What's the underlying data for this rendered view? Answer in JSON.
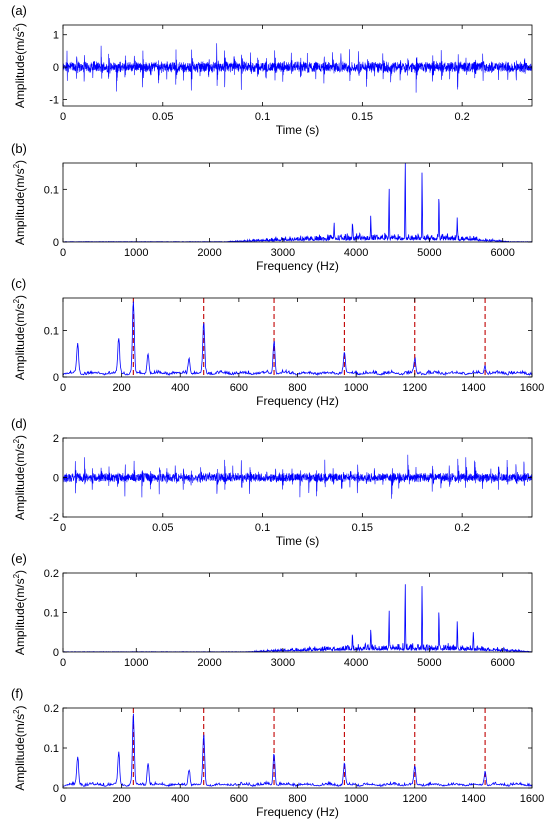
{
  "colors": {
    "signal": "#0000ff",
    "harmonic": "#c00000",
    "axis": "#000000"
  },
  "chart_data": [
    {
      "panel_label": "(a)",
      "type": "line",
      "kind": "time",
      "xlabel": "Time (s)",
      "ylabel": "Amplitude(m/s²)",
      "ylabel_main": "Amplitude(m/s",
      "ylabel_sup": "2",
      "ylabel_tail": ")",
      "xlim": [
        0,
        0.235
      ],
      "ylim": [
        -1.2,
        1.3
      ],
      "xticks": [
        0,
        0.05,
        0.1,
        0.15,
        0.2
      ],
      "xtick_labels": [
        "0",
        "0.05",
        "0.1",
        "0.15",
        "0.2"
      ],
      "yticks": [
        -1,
        0,
        1
      ],
      "ytick_labels": [
        "-1",
        "0",
        "1"
      ],
      "noise_amplitude": 0.18,
      "impulse_period": 0.00416,
      "impulse_amplitude_range": [
        0.35,
        1.15
      ]
    },
    {
      "panel_label": "(b)",
      "type": "line",
      "kind": "spectrum",
      "xlabel": "Frequency (Hz)",
      "ylabel": "Amplitude(m/s²)",
      "ylabel_main": "Amplitude(m/s",
      "ylabel_sup": "2",
      "ylabel_tail": ")",
      "xlim": [
        0,
        6400
      ],
      "ylim": [
        0,
        0.15
      ],
      "xticks": [
        0,
        1000,
        2000,
        3000,
        4000,
        5000,
        6000
      ],
      "xtick_labels": [
        "0",
        "1000",
        "2000",
        "3000",
        "4000",
        "5000",
        "6000"
      ],
      "yticks": [
        0,
        0.1
      ],
      "ytick_labels": [
        "0",
        "0.1"
      ],
      "band": {
        "start": 2200,
        "center": 4700,
        "end": 6100,
        "floor": 0.012
      },
      "peaks": [
        {
          "x": 3700,
          "y": 0.03
        },
        {
          "x": 3950,
          "y": 0.035
        },
        {
          "x": 4200,
          "y": 0.045
        },
        {
          "x": 4450,
          "y": 0.1
        },
        {
          "x": 4670,
          "y": 0.15
        },
        {
          "x": 4900,
          "y": 0.125
        },
        {
          "x": 5130,
          "y": 0.085
        },
        {
          "x": 5380,
          "y": 0.04
        }
      ]
    },
    {
      "panel_label": "(c)",
      "type": "line",
      "kind": "envelope",
      "xlabel": "Frequency (Hz)",
      "ylabel": "Amplitude(m/s²)",
      "ylabel_main": "Amplitude(m/s",
      "ylabel_sup": "2",
      "ylabel_tail": ")",
      "xlim": [
        0,
        1600
      ],
      "ylim": [
        0,
        0.17
      ],
      "xticks": [
        0,
        200,
        400,
        600,
        800,
        1000,
        1200,
        1400,
        1600
      ],
      "xtick_labels": [
        "0",
        "200",
        "400",
        "600",
        "800",
        "1000",
        "1200",
        "1400",
        "1600"
      ],
      "yticks": [
        0,
        0.1
      ],
      "ytick_labels": [
        "0",
        "0.1"
      ],
      "harmonic_lines_hz": [
        240,
        480,
        720,
        960,
        1200,
        1440
      ],
      "peaks": [
        {
          "x": 50,
          "y": 0.065
        },
        {
          "x": 190,
          "y": 0.075
        },
        {
          "x": 240,
          "y": 0.155
        },
        {
          "x": 290,
          "y": 0.045
        },
        {
          "x": 430,
          "y": 0.035
        },
        {
          "x": 480,
          "y": 0.11
        },
        {
          "x": 720,
          "y": 0.07
        },
        {
          "x": 960,
          "y": 0.045
        },
        {
          "x": 1200,
          "y": 0.03
        },
        {
          "x": 1440,
          "y": 0.015
        }
      ]
    },
    {
      "panel_label": "(d)",
      "type": "line",
      "kind": "time",
      "xlabel": "Time (s)",
      "ylabel": "Amplitude(m/s²)",
      "ylabel_main": "Amplitude(m/s",
      "ylabel_sup": "2",
      "ylabel_tail": ")",
      "xlim": [
        0,
        0.235
      ],
      "ylim": [
        -2,
        2
      ],
      "xticks": [
        0,
        0.05,
        0.1,
        0.15,
        0.2
      ],
      "xtick_labels": [
        "0",
        "0.05",
        "0.1",
        "0.15",
        "0.2"
      ],
      "yticks": [
        -2,
        0,
        2
      ],
      "ytick_labels": [
        "-2",
        "0",
        "2"
      ],
      "noise_amplitude": 0.25,
      "impulse_period": 0.00416,
      "impulse_amplitude_range": [
        0.5,
        1.6
      ]
    },
    {
      "panel_label": "(e)",
      "type": "line",
      "kind": "spectrum",
      "xlabel": "",
      "ylabel": "Amplitude(m/s²)",
      "ylabel_main": "Amplitude(m/s",
      "ylabel_sup": "2",
      "ylabel_tail": ")",
      "xlim": [
        0,
        6400
      ],
      "ylim": [
        0,
        0.2
      ],
      "xticks": [
        0,
        1000,
        2000,
        3000,
        4000,
        5000,
        6000
      ],
      "xtick_labels": [
        "0",
        "1000",
        "2000",
        "3000",
        "4000",
        "5000",
        "6000"
      ],
      "yticks": [
        0,
        0.1,
        0.2
      ],
      "ytick_labels": [
        "0",
        "0.1",
        "0.2"
      ],
      "band": {
        "start": 2500,
        "center": 4800,
        "end": 6400,
        "floor": 0.015
      },
      "peaks": [
        {
          "x": 3950,
          "y": 0.04
        },
        {
          "x": 4200,
          "y": 0.05
        },
        {
          "x": 4450,
          "y": 0.1
        },
        {
          "x": 4670,
          "y": 0.165
        },
        {
          "x": 4900,
          "y": 0.16
        },
        {
          "x": 5130,
          "y": 0.105
        },
        {
          "x": 5380,
          "y": 0.07
        },
        {
          "x": 5600,
          "y": 0.04
        }
      ]
    },
    {
      "panel_label": "(f)",
      "type": "line",
      "kind": "envelope",
      "xlabel": "Frequency (Hz)",
      "ylabel": "Amplitude(m/s²)",
      "ylabel_main": "Amplitude(m/s",
      "ylabel_sup": "2",
      "ylabel_tail": ")",
      "xlim": [
        0,
        1600
      ],
      "ylim": [
        0,
        0.2
      ],
      "xticks": [
        0,
        200,
        400,
        600,
        800,
        1000,
        1200,
        1400,
        1600
      ],
      "xtick_labels": [
        "0",
        "200",
        "400",
        "600",
        "800",
        "1000",
        "1200",
        "1400",
        "1600"
      ],
      "yticks": [
        0,
        0.1,
        0.2
      ],
      "ytick_labels": [
        "0",
        "0.1",
        "0.2"
      ],
      "harmonic_lines_hz": [
        240,
        480,
        720,
        960,
        1200,
        1440
      ],
      "peaks": [
        {
          "x": 50,
          "y": 0.07
        },
        {
          "x": 190,
          "y": 0.08
        },
        {
          "x": 240,
          "y": 0.175
        },
        {
          "x": 290,
          "y": 0.055
        },
        {
          "x": 430,
          "y": 0.04
        },
        {
          "x": 480,
          "y": 0.125
        },
        {
          "x": 720,
          "y": 0.08
        },
        {
          "x": 960,
          "y": 0.055
        },
        {
          "x": 1200,
          "y": 0.045
        },
        {
          "x": 1440,
          "y": 0.035
        }
      ]
    }
  ]
}
